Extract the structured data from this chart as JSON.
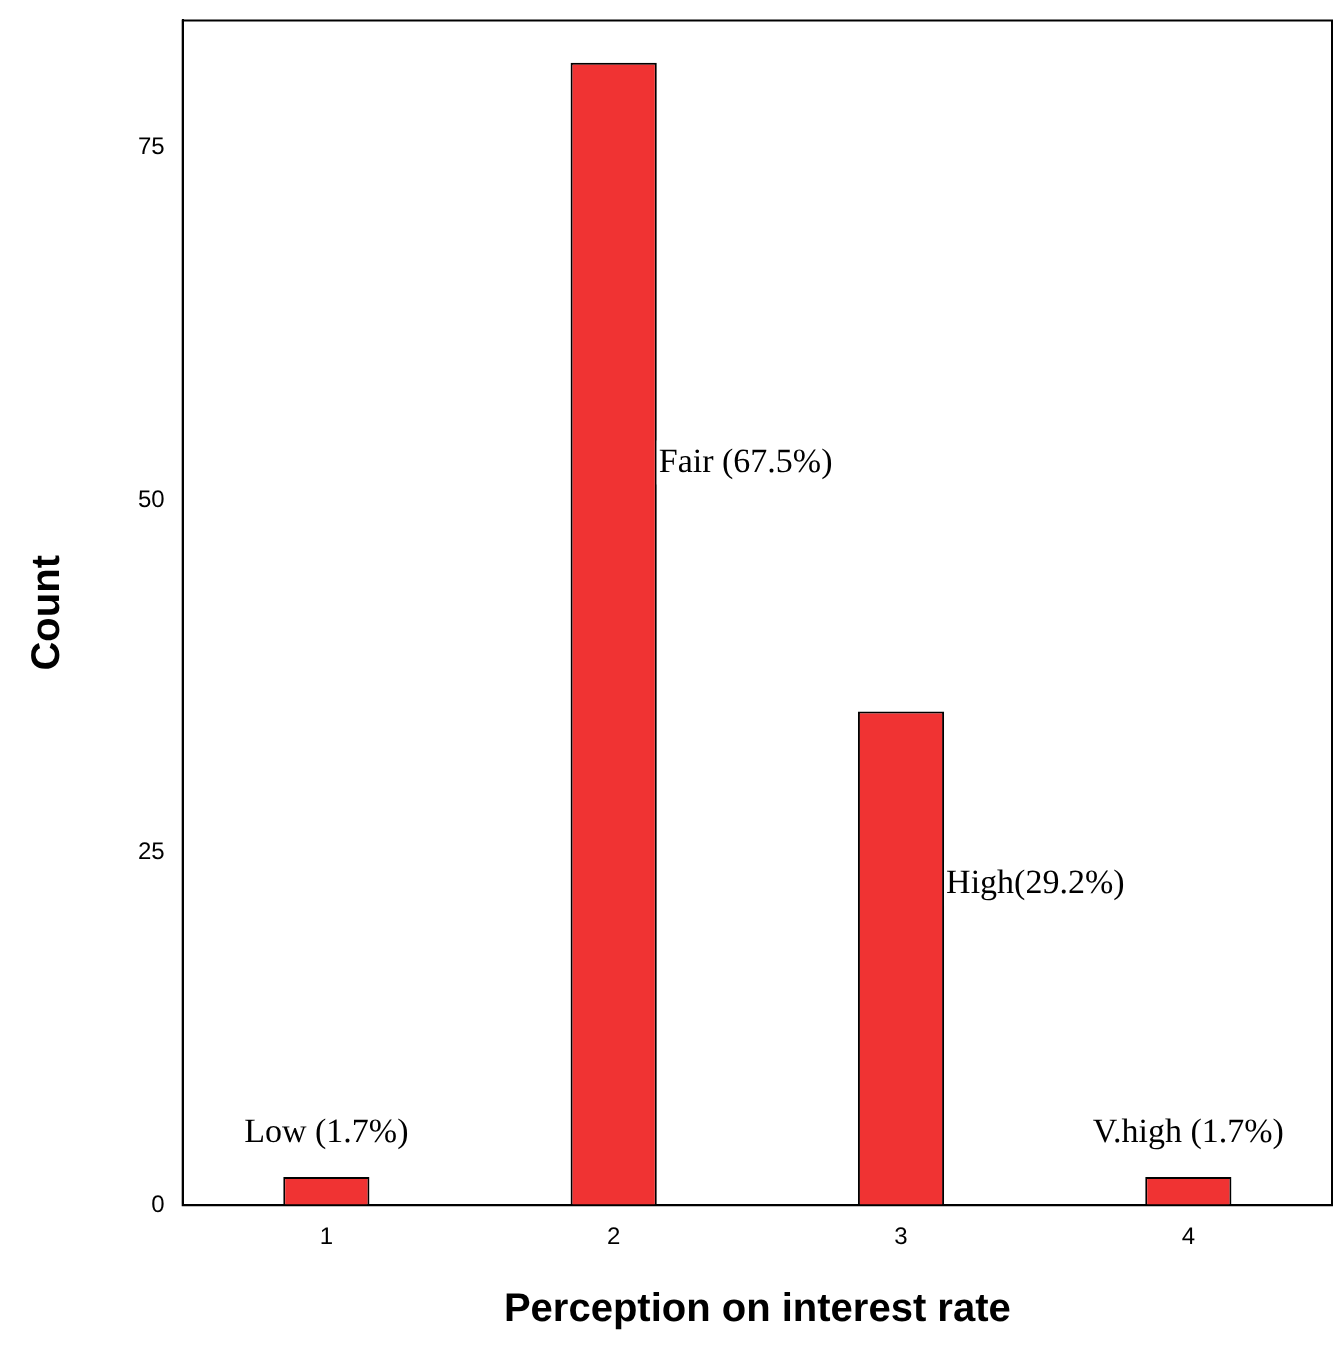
{
  "chart_data": {
    "type": "bar",
    "xlabel": "Perception on interest rate",
    "ylabel": "Count",
    "categories": [
      "1",
      "2",
      "3",
      "4"
    ],
    "values": [
      2,
      81,
      35,
      2
    ],
    "color": "#f03333",
    "ylim": [
      0,
      84
    ],
    "yticks": [
      0,
      25,
      50,
      75
    ],
    "grid": false,
    "legend": false,
    "annotations": [
      "Low (1.7%)",
      "Fair (67.5%)",
      "High(29.2%)",
      "V.high (1.7%)"
    ]
  }
}
